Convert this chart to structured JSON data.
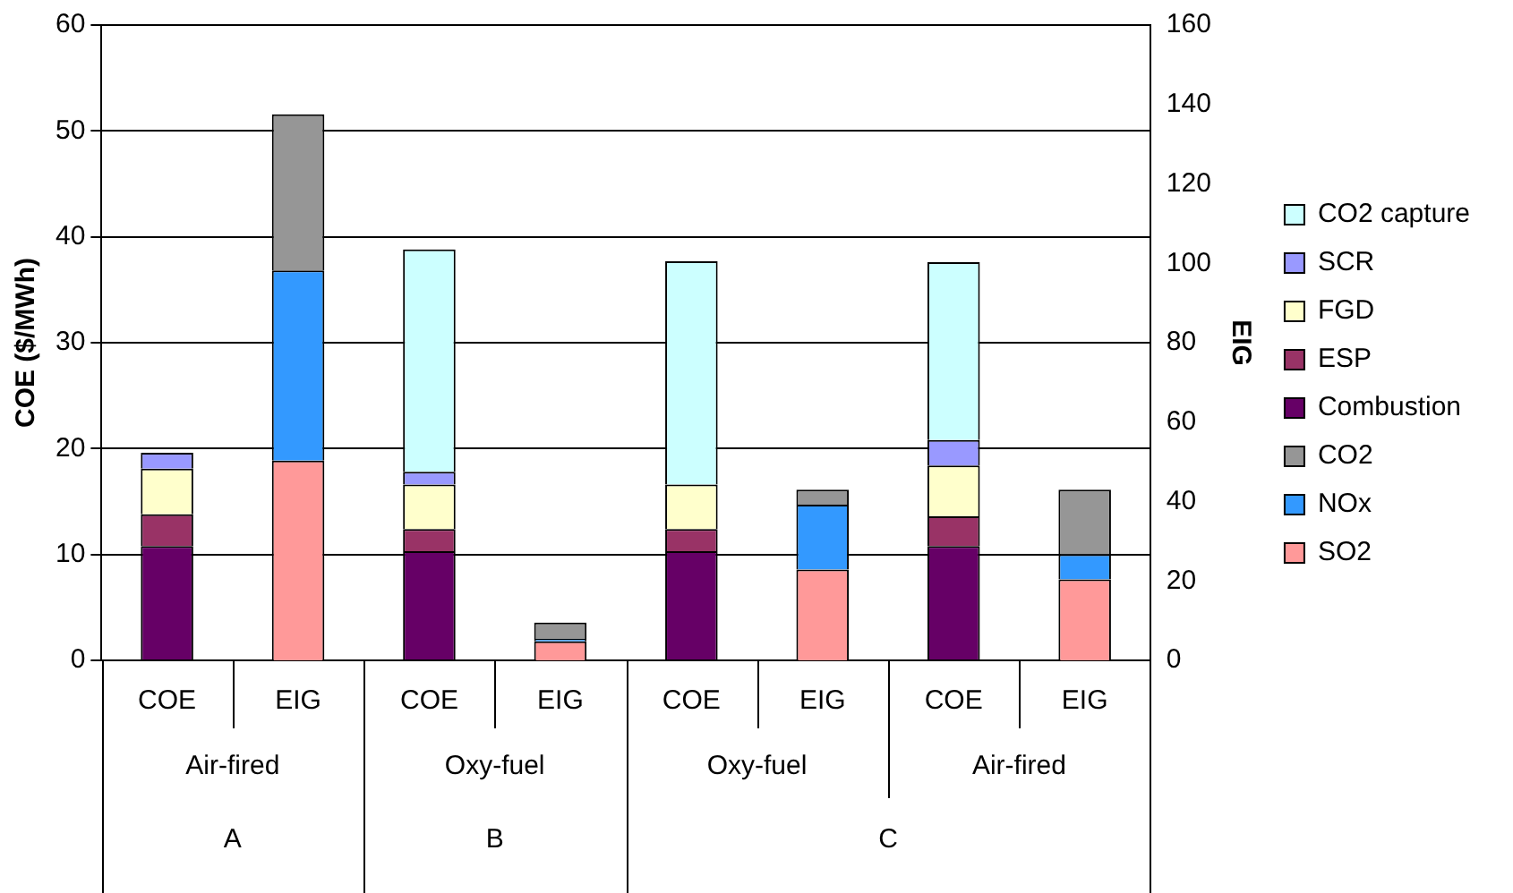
{
  "chart_data": {
    "type": "bar",
    "stacked": true,
    "ylabel": "COE ($/MWh)",
    "y2label": "EIG",
    "categories": [
      "COE",
      "EIG",
      "COE",
      "EIG",
      "COE",
      "EIG",
      "COE",
      "EIG"
    ],
    "annotations": [
      "Air-fired",
      "Oxy-fuel",
      "Oxy-fuel",
      "Air-fired",
      "A",
      "B",
      "C"
    ],
    "series": [
      {
        "name": "Combustion",
        "color": "#660066",
        "values": [
          10.8,
          null,
          10.3,
          null,
          10.3,
          null,
          10.8,
          null
        ]
      },
      {
        "name": "ESP",
        "color": "#993366",
        "values": [
          3.0,
          null,
          2.1,
          null,
          2.1,
          null,
          2.8,
          null
        ]
      },
      {
        "name": "FGD",
        "color": "#ffffcc",
        "values": [
          4.3,
          null,
          4.2,
          null,
          4.2,
          null,
          4.8,
          null
        ]
      },
      {
        "name": "SCR",
        "color": "#9999ff",
        "values": [
          1.5,
          null,
          1.2,
          null,
          null,
          null,
          2.4,
          null
        ]
      },
      {
        "name": "CO2 capture",
        "color": "#ccffff",
        "values": [
          null,
          null,
          21.0,
          null,
          21.1,
          null,
          16.8,
          null
        ]
      },
      {
        "name": "SO2",
        "color": "#ff9999",
        "axis": "y2",
        "values": [
          null,
          50.3,
          null,
          4.8,
          null,
          22.9,
          null,
          20.4
        ]
      },
      {
        "name": "NOx",
        "color": "#3399ff",
        "axis": "y2",
        "values": [
          null,
          47.9,
          null,
          0.6,
          null,
          16.3,
          null,
          6.3
        ]
      },
      {
        "name": "CO2",
        "color": "#969696",
        "axis": "y2",
        "values": [
          null,
          39.3,
          null,
          4.1,
          null,
          3.8,
          null,
          16.3
        ]
      }
    ],
    "ylim": [
      0,
      60
    ],
    "yticks": [
      0,
      10,
      20,
      30,
      40,
      50,
      60
    ],
    "y2lim": [
      0,
      160
    ],
    "y2ticks": [
      0,
      20,
      40,
      60,
      80,
      100,
      120,
      140,
      160
    ],
    "grid": "y",
    "legend": "right"
  }
}
